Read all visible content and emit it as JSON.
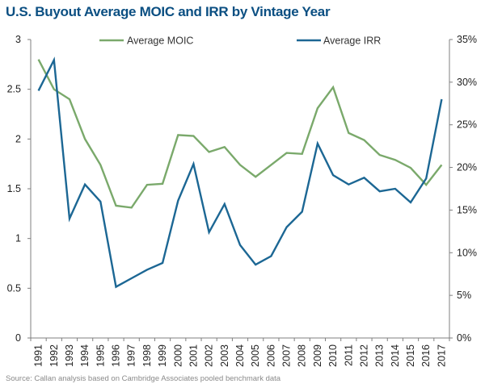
{
  "chart_data": {
    "type": "line",
    "title": "U.S. Buyout Average MOIC and IRR by Vintage Year",
    "categories": [
      "1991",
      "1992",
      "1993",
      "1994",
      "1995",
      "1996",
      "1997",
      "1998",
      "1999",
      "2000",
      "2001",
      "2002",
      "2003",
      "2004",
      "2005",
      "2006",
      "2007",
      "2008",
      "2009",
      "2010",
      "2011",
      "2012",
      "2013",
      "2014",
      "2015",
      "2016",
      "2017"
    ],
    "series": [
      {
        "name": "Average MOIC",
        "axis": "left",
        "color": "#7aa96b",
        "values": [
          2.8,
          2.5,
          2.4,
          2.0,
          1.74,
          1.33,
          1.31,
          1.54,
          1.55,
          2.04,
          2.03,
          1.87,
          1.92,
          1.74,
          1.62,
          1.74,
          1.86,
          1.85,
          2.31,
          2.52,
          2.06,
          1.99,
          1.84,
          1.79,
          1.71,
          1.54,
          1.74
        ]
      },
      {
        "name": "Average IRR",
        "axis": "right",
        "unit": "%",
        "color": "#1c6794",
        "values": [
          29,
          32.6,
          14,
          18,
          16,
          6,
          7,
          8,
          8.8,
          16.1,
          20.4,
          12.4,
          15.7,
          10.9,
          8.6,
          9.6,
          13,
          14.8,
          22.8,
          19.1,
          18,
          18.8,
          17.2,
          17.5,
          15.9,
          18.7,
          28
        ]
      }
    ],
    "ylim_left": [
      0,
      3
    ],
    "yticks_left": [
      "0",
      "0.5",
      "1",
      "1.5",
      "2",
      "2.5",
      "3"
    ],
    "ylim_right": [
      0,
      35
    ],
    "yticks_right": [
      "0%",
      "5%",
      "10%",
      "15%",
      "20%",
      "25%",
      "30%",
      "35%"
    ],
    "grid": false,
    "legend_position": "top"
  },
  "footnote": "Source: Callan analysis based on Cambridge Associates  pooled benchmark data"
}
